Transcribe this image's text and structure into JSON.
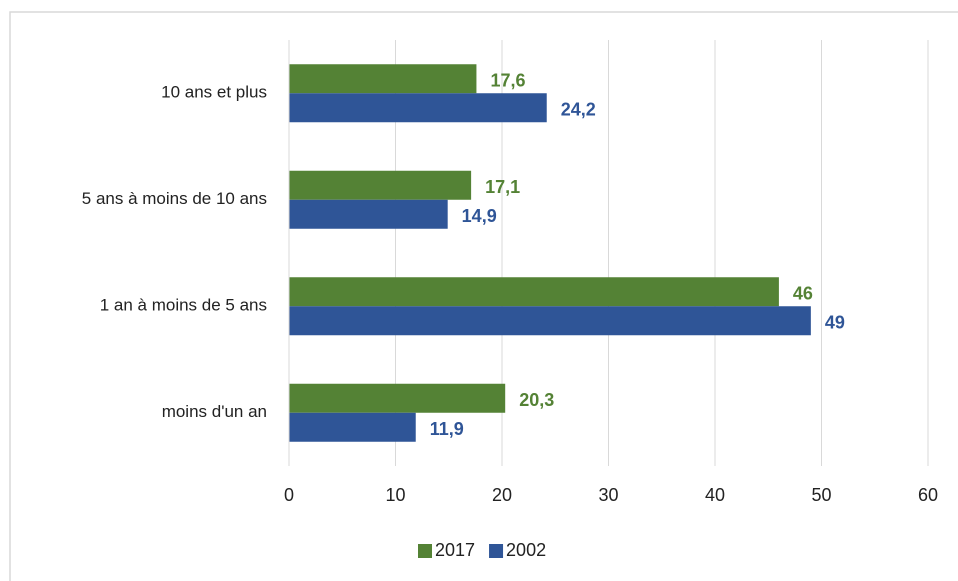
{
  "chart_data": {
    "type": "barh",
    "categories": [
      "10 ans et plus",
      "5 ans à moins de 10 ans",
      "1 an à moins de 5 ans",
      "moins d'un an"
    ],
    "series": [
      {
        "name": "2017",
        "color": "#548235",
        "values": [
          17.6,
          17.1,
          46,
          20.3
        ],
        "value_labels": [
          "17,6",
          "17,1",
          "46",
          "20,3"
        ]
      },
      {
        "name": "2002",
        "color": "#2f5597",
        "values": [
          24.2,
          14.9,
          49,
          11.9
        ],
        "value_labels": [
          "24,2",
          "14,9",
          "49",
          "11,9"
        ]
      }
    ],
    "xlim": [
      0,
      60
    ],
    "xticks": [
      0,
      10,
      20,
      30,
      40,
      50,
      60
    ],
    "grid": true,
    "legend": "bottom"
  }
}
